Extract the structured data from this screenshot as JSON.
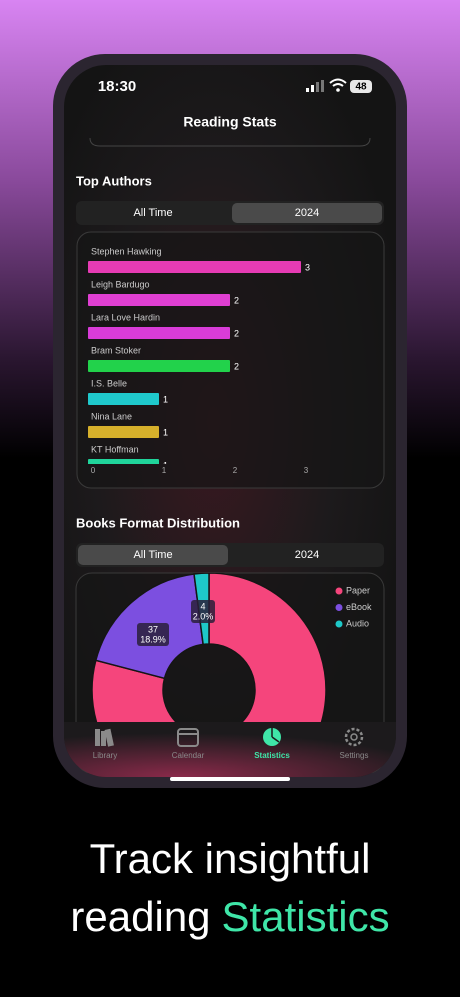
{
  "status_bar": {
    "time": "18:30",
    "battery": "48"
  },
  "nav_title": "Reading Stats",
  "top_authors": {
    "title": "Top Authors",
    "tabs": [
      "All Time",
      "2024"
    ],
    "selected_tab": 1,
    "chart": {
      "type": "bar",
      "orientation": "horizontal",
      "categories": [
        "Stephen Hawking",
        "Leigh Bardugo",
        "Lara Love Hardin",
        "Bram Stoker",
        "I.S. Belle",
        "Nina Lane",
        "KT Hoffman"
      ],
      "values": [
        3,
        2,
        2,
        2,
        1,
        1,
        1
      ],
      "colors": [
        "#e63bb4",
        "#df3fd2",
        "#d93cd8",
        "#22d24b",
        "#1fc9cc",
        "#d6b02b",
        "#20d49b"
      ],
      "xlim": [
        0,
        3
      ],
      "xticks": [
        0,
        1,
        2,
        3
      ]
    }
  },
  "format_distribution": {
    "title": "Books Format Distribution",
    "tabs": [
      "All Time",
      "2024"
    ],
    "selected_tab": 0,
    "chart": {
      "type": "pie",
      "donut": true,
      "categories": [
        "Paper",
        "eBook",
        "Audio"
      ],
      "values": [
        155,
        37,
        4
      ],
      "percent_labels": [
        null,
        "18.9%",
        "2.0%"
      ],
      "colors": [
        "#f5457c",
        "#7c4fe0",
        "#1ec8c8"
      ]
    }
  },
  "tab_bar": {
    "items": [
      "Library",
      "Calendar",
      "Statistics",
      "Settings"
    ],
    "selected": 2
  },
  "caption": {
    "line1": "Track insightful",
    "line2": "reading",
    "highlight": "Statistics"
  }
}
